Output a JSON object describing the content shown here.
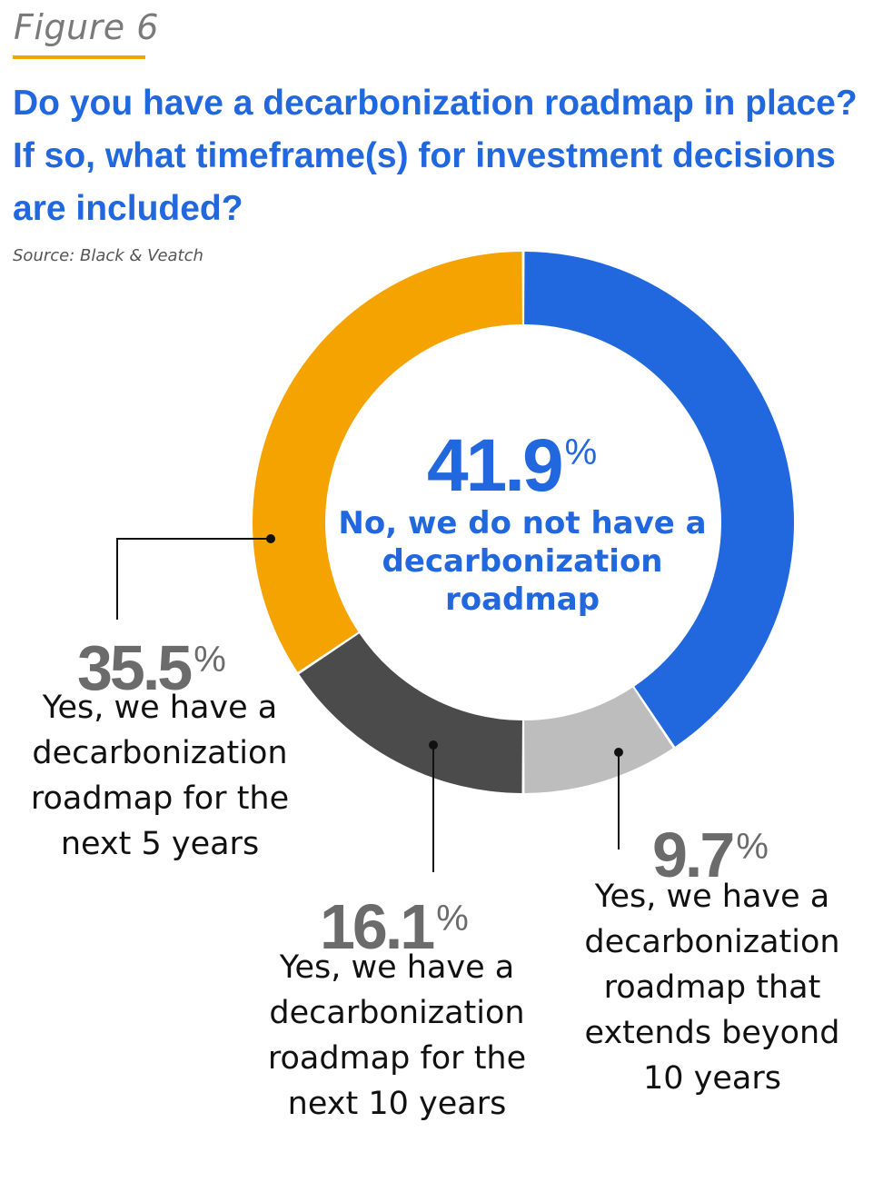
{
  "figure_label": "Figure 6",
  "title": "Do you have a decarbonization roadmap in place? If so, what timeframe(s) for investment decisions are included?",
  "source": "Source: Black & Veatch",
  "percent_symbol": "%",
  "colors": {
    "accent_orange": "#f5a300",
    "blue": "#2167dd",
    "dark_gray": "#4b4b4b",
    "light_gray": "#bdbdbd",
    "label_gray": "#6b6b6b"
  },
  "chart_data": {
    "type": "pie",
    "donut": true,
    "title": "Do you have a decarbonization roadmap in place? If so, what timeframe(s) for investment decisions are included?",
    "slices": [
      {
        "id": "no_roadmap",
        "value": 41.9,
        "value_text": "41.9",
        "label": "No, we do not have a decarbonization roadmap",
        "color": "#2167dd"
      },
      {
        "id": "beyond_10",
        "value": 9.7,
        "value_text": "9.7",
        "label": "Yes, we have a decarbonization roadmap that extends beyond 10 years",
        "color": "#bdbdbd"
      },
      {
        "id": "next_10",
        "value": 16.1,
        "value_text": "16.1",
        "label": "Yes, we have a decarbonization roadmap for the next 10 years",
        "color": "#4b4b4b"
      },
      {
        "id": "next_5",
        "value": 35.5,
        "value_text": "35.5",
        "label": "Yes, we have a decarbonization roadmap for the next 5 years",
        "color": "#f5a300"
      }
    ]
  }
}
